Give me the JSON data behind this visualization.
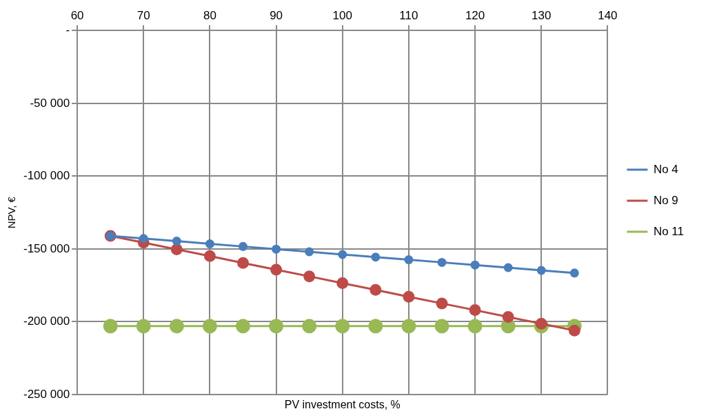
{
  "chart_data": {
    "type": "line",
    "xlabel": "PV investment costs, %",
    "ylabel": "NPV, €",
    "x": [
      65,
      70,
      75,
      80,
      85,
      90,
      95,
      100,
      105,
      110,
      115,
      120,
      125,
      130,
      135
    ],
    "series": [
      {
        "name": "No 4",
        "color": "#4a7ebb",
        "values": [
          -141000,
          -142800,
          -144600,
          -146500,
          -148300,
          -150100,
          -151900,
          -153800,
          -155600,
          -157400,
          -159200,
          -161000,
          -162800,
          -164700,
          -166500
        ]
      },
      {
        "name": "No 9",
        "color": "#be4b48",
        "values": [
          -141000,
          -145600,
          -150300,
          -154900,
          -159600,
          -164200,
          -168800,
          -173500,
          -178100,
          -182800,
          -187400,
          -192000,
          -196700,
          -201300,
          -206000
        ]
      },
      {
        "name": "No 11",
        "color": "#98b954",
        "values": [
          -203000,
          -203000,
          -203000,
          -203000,
          -203000,
          -203000,
          -203000,
          -203000,
          -203000,
          -203000,
          -203000,
          -203000,
          -203000,
          -203000,
          -203000
        ]
      }
    ],
    "xlim": [
      60,
      140
    ],
    "xticks": [
      60,
      70,
      80,
      90,
      100,
      110,
      120,
      130,
      140
    ],
    "ylim": [
      -250000,
      0
    ],
    "yticks": [
      {
        "value": 0,
        "label": "-"
      },
      {
        "value": -50000,
        "label": "-50 000"
      },
      {
        "value": -100000,
        "label": "-100 000"
      },
      {
        "value": -150000,
        "label": "-150 000"
      },
      {
        "value": -200000,
        "label": "-200 000"
      },
      {
        "value": -250000,
        "label": "-250 000"
      }
    ],
    "grid": true,
    "legend": "right",
    "marker": "circle",
    "line_style": "solid"
  }
}
